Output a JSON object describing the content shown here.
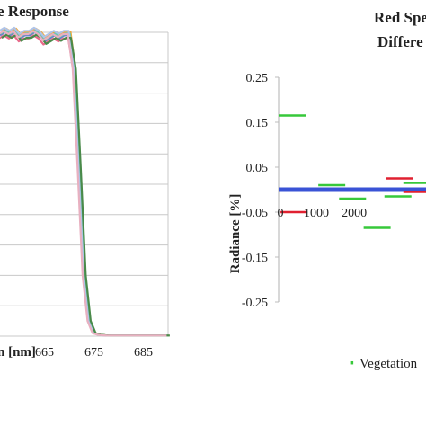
{
  "chart_data": [
    {
      "type": "line",
      "title": "e Response",
      "xlabel": "n [nm]",
      "ylabel": "",
      "xlim": [
        656,
        690
      ],
      "ylim": [
        0,
        1
      ],
      "x_ticks": [
        665,
        675,
        685
      ],
      "grid": true,
      "series_colors": [
        "#6a7fc8",
        "#f0a73a",
        "#e86a8a",
        "#6bc7b0",
        "#b0c4e8",
        "#4a8a4a",
        "#e8b0c0"
      ],
      "series": [
        {
          "x": [
            656,
            657,
            658,
            659,
            660,
            661,
            662,
            663,
            664,
            665,
            666,
            667,
            668,
            669,
            670,
            671,
            672,
            673,
            674,
            675,
            676,
            677,
            678,
            680,
            682,
            684,
            686,
            688,
            690
          ],
          "values": [
            0.99,
            1.0,
            0.99,
            1.0,
            0.98,
            0.99,
            0.99,
            1.0,
            0.99,
            0.97,
            0.98,
            0.99,
            0.98,
            0.99,
            0.99,
            0.88,
            0.55,
            0.2,
            0.05,
            0.01,
            0.005,
            0.003,
            0.002,
            0.002,
            0.002,
            0.002,
            0.002,
            0.002,
            0.002
          ]
        }
      ]
    },
    {
      "type": "scatter",
      "title": [
        "Red Spe",
        "Differe"
      ],
      "xlabel": "",
      "ylabel": "Radiance [%]",
      "ylim": [
        -0.25,
        0.25
      ],
      "y_ticks": [
        "0.25",
        "0.15",
        "0.05",
        "-0.05",
        "-0.15",
        "-0.25"
      ],
      "x_ticks": [
        "0",
        "1000",
        "2000"
      ],
      "x_tick_values": [
        0,
        1000,
        2000
      ],
      "xlim": [
        0,
        3900
      ],
      "baseline": {
        "y": 0.0,
        "color": "#3a53d6"
      },
      "series": [
        {
          "name": "Vegetation",
          "color": "#37c83a",
          "segments": [
            [
              0,
              0.165
            ],
            [
              1050,
              0.01
            ],
            [
              1600,
              -0.02
            ],
            [
              2250,
              -0.085
            ],
            [
              2800,
              -0.015
            ],
            [
              3300,
              0.015
            ]
          ]
        },
        {
          "name": "",
          "color": "#e02030",
          "segments": [
            [
              50,
              -0.05
            ],
            [
              2850,
              0.025
            ],
            [
              3300,
              -0.005
            ]
          ]
        }
      ],
      "legend": {
        "position": "bottom",
        "label": "Vegetation"
      }
    }
  ]
}
